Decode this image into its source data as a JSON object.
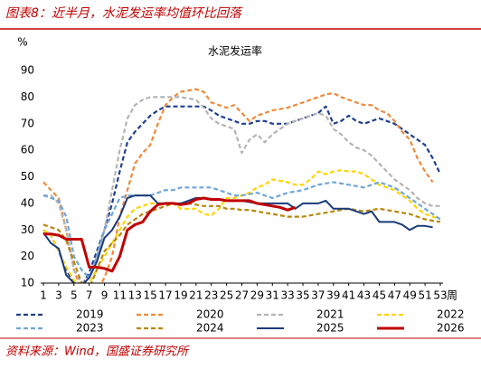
{
  "header": {
    "title": "图表8：近半月，水泥发运率均值环比回落"
  },
  "chart_data": {
    "type": "line",
    "title": "水泥发运率",
    "y_unit_label": "%",
    "x_label": "周",
    "x": [
      1,
      2,
      3,
      4,
      5,
      6,
      7,
      8,
      9,
      10,
      11,
      12,
      13,
      14,
      15,
      16,
      17,
      18,
      19,
      20,
      21,
      22,
      23,
      24,
      25,
      26,
      27,
      28,
      29,
      30,
      31,
      32,
      33,
      34,
      35,
      36,
      37,
      38,
      39,
      40,
      41,
      42,
      43,
      44,
      45,
      46,
      47,
      48,
      49,
      50,
      51,
      52,
      53
    ],
    "xlim": [
      1,
      53
    ],
    "xticks": [
      1,
      3,
      5,
      7,
      9,
      11,
      13,
      15,
      17,
      19,
      21,
      23,
      25,
      27,
      29,
      31,
      33,
      35,
      37,
      39,
      41,
      43,
      45,
      47,
      49,
      51,
      53
    ],
    "ylim": [
      10,
      90
    ],
    "yticks": [
      10,
      20,
      30,
      40,
      50,
      60,
      70,
      80,
      90
    ],
    "grid": false,
    "series": [
      {
        "name": "2019",
        "color": "#1f3f8f",
        "dashed": true,
        "width": 2.2,
        "values": [
          30,
          28,
          22,
          15,
          10,
          9,
          14,
          22,
          30,
          40,
          52,
          63,
          67,
          70,
          73,
          75,
          76.5,
          76.5,
          76.5,
          76.5,
          76.5,
          76.5,
          75,
          73,
          72,
          71,
          70,
          70,
          71,
          71,
          70,
          70,
          70,
          71,
          72,
          73,
          74,
          76.5,
          70,
          71,
          73,
          71,
          70,
          71,
          72,
          71,
          70,
          68,
          66,
          64,
          62,
          57,
          51
        ]
      },
      {
        "name": "2020",
        "color": "#f08a3c",
        "dashed": true,
        "width": 2.2,
        "values": [
          48,
          45,
          42,
          30,
          15,
          7,
          6,
          7,
          12,
          20,
          35,
          45,
          55,
          59,
          62,
          70,
          77,
          80,
          82,
          82.5,
          83,
          82,
          78,
          77,
          76,
          77,
          74,
          71,
          73,
          74,
          75,
          75.5,
          76,
          77,
          78,
          79,
          80,
          81,
          81.5,
          80,
          79,
          78,
          77,
          77,
          75,
          74,
          71,
          67,
          64,
          57,
          52,
          48,
          null
        ]
      },
      {
        "name": "2021",
        "color": "#b4b4b4",
        "dashed": true,
        "width": 2.2,
        "values": [
          43,
          43,
          40,
          30,
          15,
          10,
          12,
          20,
          30,
          45,
          60,
          72,
          77,
          79,
          80,
          80,
          80,
          80,
          80,
          79.5,
          79,
          76,
          72,
          70,
          69,
          68,
          59,
          64,
          66,
          63,
          66,
          68,
          70,
          71,
          72,
          73,
          74,
          73,
          68,
          66,
          63,
          61,
          60,
          58,
          55,
          52,
          49,
          47,
          45,
          42,
          40,
          39,
          39
        ]
      },
      {
        "name": "2022",
        "color": "#ffd400",
        "dashed": true,
        "width": 2.2,
        "values": [
          30,
          28,
          22,
          16,
          11,
          9,
          10,
          15,
          20,
          25,
          30,
          35,
          38,
          39,
          40,
          40,
          40,
          40,
          38,
          38,
          38,
          36,
          35.5,
          38,
          42,
          42,
          43,
          44,
          46,
          47,
          49,
          48.5,
          48,
          47,
          47,
          49,
          52,
          51,
          52,
          52.5,
          52,
          52,
          51,
          49,
          47,
          46,
          45,
          43,
          41,
          38,
          36,
          35,
          34
        ]
      },
      {
        "name": "2023",
        "color": "#6fa6d8",
        "dashed": true,
        "width": 2.2,
        "values": [
          43,
          42,
          41,
          35,
          20,
          15,
          12,
          20,
          30,
          36,
          42,
          43,
          43,
          43,
          43,
          44,
          45,
          45,
          46,
          46,
          46,
          46,
          46,
          45,
          44,
          43,
          43,
          43.5,
          44,
          43,
          42,
          43,
          44,
          44.5,
          45,
          46,
          47,
          47.5,
          48,
          47.5,
          47,
          46.5,
          46,
          47,
          48,
          47,
          46,
          44,
          42,
          40,
          38,
          36,
          34
        ]
      },
      {
        "name": "2024",
        "color": "#b8860b",
        "dashed": true,
        "width": 2.2,
        "values": [
          32,
          31,
          30,
          26,
          18,
          10,
          8,
          15,
          22,
          25,
          28,
          32,
          34,
          36,
          37,
          38,
          39,
          40,
          40,
          40,
          39.5,
          39,
          39,
          39,
          38,
          38,
          37.5,
          37.5,
          37,
          36.5,
          36,
          35.5,
          35,
          35,
          35,
          35.5,
          36,
          36.5,
          37,
          37.5,
          38,
          37.5,
          37,
          37.5,
          38,
          37.5,
          37,
          36.5,
          36,
          35,
          34,
          33.5,
          33
        ]
      },
      {
        "name": "2025",
        "color": "#1a3b7a",
        "dashed": false,
        "width": 2,
        "values": [
          29,
          25,
          23,
          13,
          10,
          9,
          12,
          18,
          27,
          30,
          35,
          42,
          43,
          43,
          43,
          40,
          40,
          40,
          40,
          41,
          42,
          42,
          41.5,
          41.5,
          41,
          41,
          41,
          40.5,
          40,
          40,
          40,
          40,
          40,
          38,
          40,
          40,
          40,
          41,
          38,
          38,
          38,
          37,
          36,
          37,
          33,
          33,
          33,
          32,
          30,
          31.5,
          31.5,
          31,
          null
        ]
      },
      {
        "name": "2026",
        "color": "#c00000",
        "dashed": false,
        "width": 3,
        "values": [
          28.5,
          28.5,
          28,
          26.5,
          26.5,
          26.5,
          16,
          16,
          15.5,
          14.5,
          20,
          30,
          32,
          33,
          37,
          39.5,
          40,
          40,
          39.5,
          40,
          41.5,
          42,
          41.5,
          41.5,
          41,
          41,
          41,
          41,
          40,
          39.5,
          39,
          38.5,
          37.5,
          38.5,
          null,
          null,
          null,
          null,
          null,
          null,
          null,
          null,
          null,
          null,
          null,
          null,
          null,
          null,
          null,
          null,
          null,
          null,
          null
        ]
      }
    ]
  },
  "footer": {
    "source": "资料来源：Wind，国盛证券研究所"
  }
}
